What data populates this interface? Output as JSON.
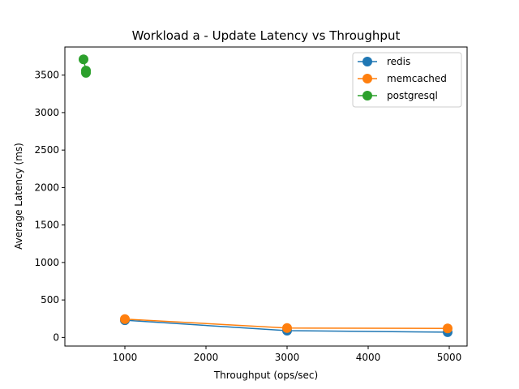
{
  "chart_data": {
    "type": "line",
    "title": "Workload a - Update Latency vs Throughput",
    "xlabel": "Throughput (ops/sec)",
    "ylabel": "Average Latency (ms)",
    "xlim": [
      260,
      5220
    ],
    "ylim": [
      -115,
      3875
    ],
    "xticks": [
      1000,
      2000,
      3000,
      4000,
      5000
    ],
    "yticks": [
      0,
      500,
      1000,
      1500,
      2000,
      2500,
      3000,
      3500
    ],
    "grid": false,
    "legend_position": "top-right",
    "series": [
      {
        "name": "redis",
        "color": "#1f77b4",
        "points": [
          {
            "x": 1000,
            "y": 230
          },
          {
            "x": 3000,
            "y": 90
          },
          {
            "x": 4980,
            "y": 70
          }
        ]
      },
      {
        "name": "memcached",
        "color": "#ff7f0e",
        "points": [
          {
            "x": 1000,
            "y": 245
          },
          {
            "x": 3000,
            "y": 125
          },
          {
            "x": 4980,
            "y": 120
          }
        ]
      },
      {
        "name": "postgresql",
        "color": "#2ca02c",
        "points": [
          {
            "x": 490,
            "y": 3710
          },
          {
            "x": 520,
            "y": 3560
          },
          {
            "x": 520,
            "y": 3530
          }
        ]
      }
    ]
  }
}
